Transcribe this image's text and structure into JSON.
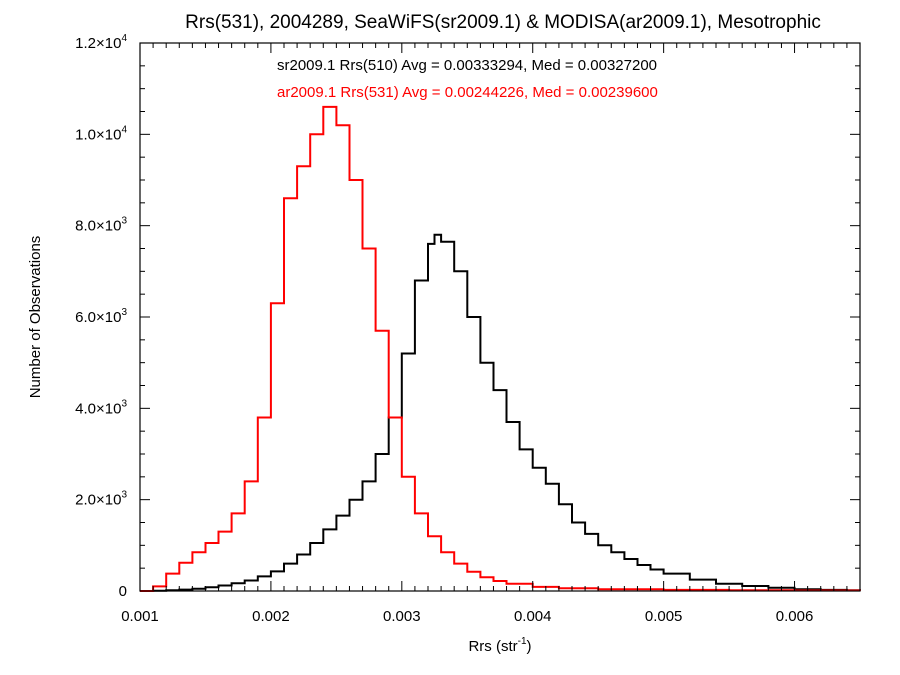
{
  "chart_data": {
    "type": "line",
    "title": "Rrs(531), 2004289, SeaWiFS(sr2009.1) & MODISA(ar2009.1), Mesotrophic",
    "xlabel_base": "Rrs (str",
    "xlabel_sup": "-1",
    "xlabel_close": ")",
    "ylabel": "Number of Observations",
    "xlim": [
      0.001,
      0.0065
    ],
    "ylim": [
      0,
      12000
    ],
    "x_ticks": [
      {
        "value": 0.001,
        "label": "0.001"
      },
      {
        "value": 0.002,
        "label": "0.002"
      },
      {
        "value": 0.003,
        "label": "0.003"
      },
      {
        "value": 0.004,
        "label": "0.004"
      },
      {
        "value": 0.005,
        "label": "0.005"
      },
      {
        "value": 0.006,
        "label": "0.006"
      }
    ],
    "y_ticks": [
      {
        "value": 0,
        "mant": "0",
        "exp": ""
      },
      {
        "value": 2000,
        "mant": "2.0×10",
        "exp": "3"
      },
      {
        "value": 4000,
        "mant": "4.0×10",
        "exp": "3"
      },
      {
        "value": 6000,
        "mant": "6.0×10",
        "exp": "3"
      },
      {
        "value": 8000,
        "mant": "8.0×10",
        "exp": "3"
      },
      {
        "value": 10000,
        "mant": "1.0×10",
        "exp": "4"
      },
      {
        "value": 12000,
        "mant": "1.2×10",
        "exp": "4"
      }
    ],
    "annotations": [
      {
        "text": "sr2009.1 Rrs(510) Avg = 0.00333294, Med = 0.00327200",
        "color": "#000000"
      },
      {
        "text": "ar2009.1 Rrs(531) Avg = 0.00244226, Med = 0.00239600",
        "color": "#ff0000"
      }
    ],
    "series": [
      {
        "color": "#000000",
        "x": [
          0.001,
          0.0011,
          0.0012,
          0.0013,
          0.0014,
          0.0015,
          0.0016,
          0.0017,
          0.0018,
          0.0019,
          0.002,
          0.0021,
          0.0022,
          0.0023,
          0.0024,
          0.0025,
          0.0026,
          0.0027,
          0.0028,
          0.0029,
          0.003,
          0.0031,
          0.0032,
          0.00325,
          0.0033,
          0.0034,
          0.0035,
          0.0036,
          0.0037,
          0.0038,
          0.0039,
          0.004,
          0.0041,
          0.0042,
          0.0043,
          0.0044,
          0.0045,
          0.0046,
          0.0047,
          0.0048,
          0.0049,
          0.005,
          0.0052,
          0.0054,
          0.0056,
          0.0058,
          0.006,
          0.0062,
          0.0064,
          0.0065
        ],
        "values": [
          0,
          5,
          15,
          30,
          50,
          80,
          120,
          170,
          230,
          320,
          430,
          600,
          800,
          1050,
          1350,
          1650,
          2000,
          2400,
          3000,
          3800,
          5200,
          6800,
          7600,
          7800,
          7650,
          7000,
          6000,
          5000,
          4400,
          3700,
          3100,
          2700,
          2350,
          1900,
          1500,
          1250,
          1000,
          850,
          700,
          570,
          470,
          380,
          250,
          160,
          110,
          70,
          40,
          25,
          15,
          10
        ]
      },
      {
        "color": "#ff0000",
        "x": [
          0.001,
          0.0011,
          0.0012,
          0.0013,
          0.0014,
          0.0015,
          0.0016,
          0.0017,
          0.0018,
          0.0019,
          0.002,
          0.0021,
          0.0022,
          0.0023,
          0.0024,
          0.0025,
          0.0026,
          0.0027,
          0.0028,
          0.0029,
          0.003,
          0.0031,
          0.0032,
          0.0033,
          0.0034,
          0.0035,
          0.0036,
          0.0037,
          0.0038,
          0.004,
          0.0042,
          0.0045,
          0.005,
          0.0055,
          0.006,
          0.0065
        ],
        "values": [
          0,
          100,
          380,
          620,
          850,
          1050,
          1300,
          1700,
          2400,
          3800,
          6300,
          8600,
          9300,
          10000,
          10600,
          10200,
          9000,
          7500,
          5700,
          3800,
          2500,
          1700,
          1200,
          850,
          600,
          420,
          300,
          220,
          160,
          90,
          60,
          40,
          25,
          15,
          10,
          5
        ]
      }
    ]
  }
}
